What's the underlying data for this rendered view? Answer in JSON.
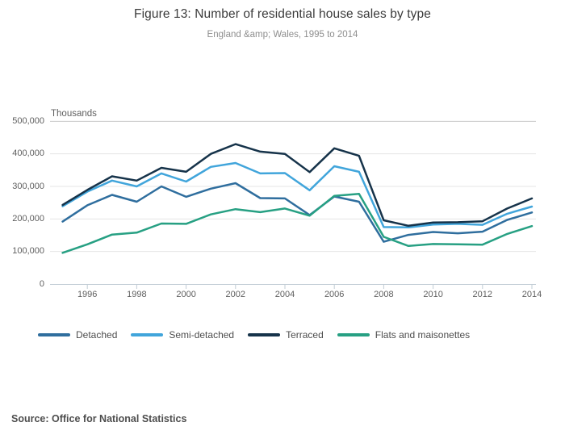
{
  "header": {
    "title": "Figure 13: Number of residential house sales by type",
    "subtitle": "England &amp; Wales, 1995 to 2014"
  },
  "chart_data": {
    "type": "line",
    "title": "Figure 13: Number of residential house sales by type",
    "subtitle": "England &amp; Wales, 1995 to 2014",
    "unit_label": "Thousands",
    "xlabel": "",
    "ylabel": "Thousands",
    "grid": true,
    "legend_position": "bottom",
    "ylim": [
      0,
      500000
    ],
    "years": [
      1995,
      1996,
      1997,
      1998,
      1999,
      2000,
      2001,
      2002,
      2003,
      2004,
      2005,
      2006,
      2007,
      2008,
      2009,
      2010,
      2011,
      2012,
      2013,
      2014
    ],
    "series": [
      {
        "name": "Detached",
        "color": "#2f6e9e",
        "values": [
          192000,
          242000,
          274000,
          253000,
          300000,
          268000,
          293000,
          310000,
          264000,
          263000,
          212000,
          269000,
          253000,
          130000,
          151000,
          160000,
          156000,
          161000,
          197000,
          220000
        ]
      },
      {
        "name": "Semi-detached",
        "color": "#41a5db",
        "values": [
          239000,
          284000,
          318000,
          300000,
          340000,
          315000,
          360000,
          372000,
          340000,
          341000,
          288000,
          362000,
          345000,
          175000,
          174000,
          183000,
          185000,
          182000,
          216000,
          238000
        ]
      },
      {
        "name": "Terraced",
        "color": "#16334a",
        "values": [
          243000,
          289000,
          331000,
          318000,
          357000,
          345000,
          400000,
          430000,
          407000,
          400000,
          344000,
          417000,
          394000,
          196000,
          179000,
          189000,
          190000,
          193000,
          232000,
          263000
        ]
      },
      {
        "name": "Flats and maisonettes",
        "color": "#27a083",
        "values": [
          96000,
          122000,
          152000,
          158000,
          186000,
          185000,
          214000,
          230000,
          221000,
          232000,
          210000,
          271000,
          277000,
          145000,
          117000,
          123000,
          122000,
          121000,
          154000,
          178000
        ]
      }
    ],
    "yticks": [
      {
        "value": 0,
        "label": "0"
      },
      {
        "value": 100000,
        "label": "100,000"
      },
      {
        "value": 200000,
        "label": "200,000"
      },
      {
        "value": 300000,
        "label": "300,000"
      },
      {
        "value": 400000,
        "label": "400,000"
      },
      {
        "value": 500000,
        "label": "500,000"
      }
    ],
    "xticks": [
      {
        "value": 1996,
        "label": "1996"
      },
      {
        "value": 1998,
        "label": "1998"
      },
      {
        "value": 2000,
        "label": "2000"
      },
      {
        "value": 2002,
        "label": "2002"
      },
      {
        "value": 2004,
        "label": "2004"
      },
      {
        "value": 2006,
        "label": "2006"
      },
      {
        "value": 2008,
        "label": "2008"
      },
      {
        "value": 2010,
        "label": "2010"
      },
      {
        "value": 2012,
        "label": "2012"
      },
      {
        "value": 2014,
        "label": "2014"
      }
    ]
  },
  "footer": {
    "source": "Source: Office for National Statistics"
  }
}
